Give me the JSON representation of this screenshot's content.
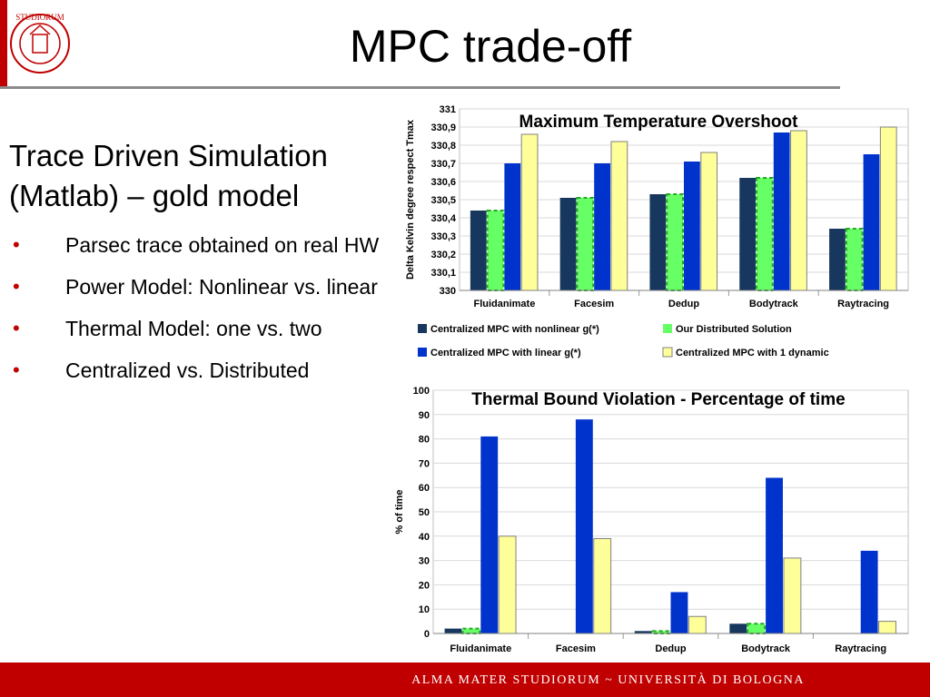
{
  "slide": {
    "title": "MPC trade-off",
    "heading": "Trace Driven Simulation (Matlab) – gold model",
    "bullets": [
      "Parsec trace obtained on real HW",
      "Power Model: Nonlinear vs. linear",
      "Thermal Model: one vs. two",
      "Centralized vs. Distributed"
    ],
    "footer": "ALMA MATER STUDIORUM ~ UNIVERSITÀ DI BOLOGNA",
    "logo_text": "STUDIORUM"
  },
  "colors": {
    "accent_red": "#c00000",
    "series": [
      "#17375e",
      "#66ff66",
      "#0033cc",
      "#ffff99"
    ]
  },
  "chart_data": [
    {
      "type": "bar",
      "title": "Maximum Temperature Overshoot",
      "ylabel": "Delta Kelvin degree respect Tmax",
      "xlabel": "",
      "ylim": [
        330,
        331
      ],
      "yticks": [
        "330",
        "330,1",
        "330,2",
        "330,3",
        "330,4",
        "330,5",
        "330,6",
        "330,7",
        "330,8",
        "330,9",
        "331"
      ],
      "categories": [
        "Fluidanimate",
        "Facesim",
        "Dedup",
        "Bodytrack",
        "Raytracing"
      ],
      "series": [
        {
          "name": "Centralized MPC with nonlinear g(*)",
          "values": [
            330.44,
            330.51,
            330.53,
            330.62,
            330.34
          ]
        },
        {
          "name": "Our Distributed Solution",
          "values": [
            330.44,
            330.51,
            330.53,
            330.62,
            330.34
          ]
        },
        {
          "name": "Centralized MPC with linear g(*)",
          "values": [
            330.7,
            330.7,
            330.71,
            330.87,
            330.75
          ]
        },
        {
          "name": "Centralized MPC with 1 dynamic",
          "values": [
            330.86,
            330.82,
            330.76,
            330.88,
            330.9
          ]
        }
      ],
      "grid": true,
      "legend": "bottom"
    },
    {
      "type": "bar",
      "title": "Thermal Bound Violation - Percentage of time",
      "ylabel": "% of time",
      "xlabel": "",
      "ylim": [
        0,
        100
      ],
      "yticks": [
        "0",
        "10",
        "20",
        "30",
        "40",
        "50",
        "60",
        "70",
        "80",
        "90",
        "100"
      ],
      "categories": [
        "Fluidanimate",
        "Facesim",
        "Dedup",
        "Bodytrack",
        "Raytracing"
      ],
      "series": [
        {
          "name": "Centralized MPC with nonlinear g(*)",
          "values": [
            2,
            0,
            1,
            4,
            0
          ]
        },
        {
          "name": "Our Distributed Solution",
          "values": [
            2,
            0,
            1,
            4,
            0
          ]
        },
        {
          "name": "Centralized MPC with linear g(*)",
          "values": [
            81,
            88,
            17,
            64,
            34
          ]
        },
        {
          "name": "Centralized MPC with 1 dynamic",
          "values": [
            40,
            39,
            7,
            31,
            5
          ]
        }
      ],
      "grid": true,
      "legend": "none"
    }
  ]
}
